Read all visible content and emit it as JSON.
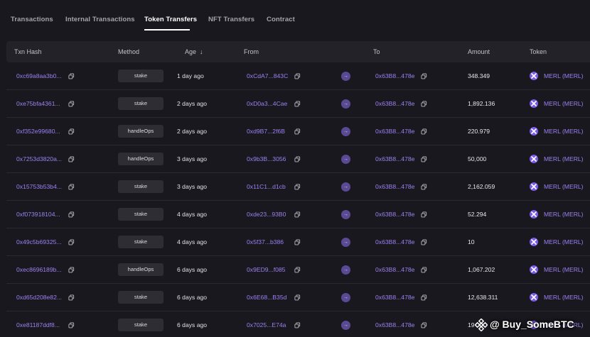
{
  "tabs": [
    {
      "label": "Transactions",
      "active": false
    },
    {
      "label": "Internal Transactions",
      "active": false
    },
    {
      "label": "Token Transfers",
      "active": true
    },
    {
      "label": "NFT Transfers",
      "active": false
    },
    {
      "label": "Contract",
      "active": false
    }
  ],
  "table": {
    "headers": {
      "txn_hash": "Txn Hash",
      "method": "Method",
      "age": "Age",
      "from": "From",
      "to": "To",
      "amount": "Amount",
      "token": "Token"
    },
    "sort_arrow": "↓",
    "rows": [
      {
        "hash": "0xc69a8aa3b0...",
        "method": "stake",
        "age": "1 day ago",
        "from": "0xCdA7...843C",
        "to": "0x63B8...478e",
        "amount": "348.349",
        "token": "MERL (MERL)"
      },
      {
        "hash": "0xe75bfa4361...",
        "method": "stake",
        "age": "2 days ago",
        "from": "0xD0a3...4Cae",
        "to": "0x63B8...478e",
        "amount": "1,892.136",
        "token": "MERL (MERL)"
      },
      {
        "hash": "0xf352e99680...",
        "method": "handleOps",
        "age": "2 days ago",
        "from": "0xd9B7...2f6B",
        "to": "0x63B8...478e",
        "amount": "220.979",
        "token": "MERL (MERL)"
      },
      {
        "hash": "0x7253d3820a...",
        "method": "handleOps",
        "age": "3 days ago",
        "from": "0x9b3B...3056",
        "to": "0x63B8...478e",
        "amount": "50,000",
        "token": "MERL (MERL)"
      },
      {
        "hash": "0x15753b53b4...",
        "method": "stake",
        "age": "3 days ago",
        "from": "0x11C1...d1cb",
        "to": "0x63B8...478e",
        "amount": "2,162.059",
        "token": "MERL (MERL)"
      },
      {
        "hash": "0xf073918104...",
        "method": "stake",
        "age": "4 days ago",
        "from": "0xde23...93B0",
        "to": "0x63B8...478e",
        "amount": "52.294",
        "token": "MERL (MERL)"
      },
      {
        "hash": "0x49c5b69325...",
        "method": "stake",
        "age": "4 days ago",
        "from": "0x5f37...b386",
        "to": "0x63B8...478e",
        "amount": "10",
        "token": "MERL (MERL)"
      },
      {
        "hash": "0xec8696189b...",
        "method": "handleOps",
        "age": "6 days ago",
        "from": "0x9ED9...f085",
        "to": "0x63B8...478e",
        "amount": "1,067.202",
        "token": "MERL (MERL)"
      },
      {
        "hash": "0xd65d208e82...",
        "method": "stake",
        "age": "6 days ago",
        "from": "0x6E68...B35d",
        "to": "0x63B8...478e",
        "amount": "12,638.311",
        "token": "MERL (MERL)"
      },
      {
        "hash": "0xe81187ddf8...",
        "method": "stake",
        "age": "6 days ago",
        "from": "0x7025...E74a",
        "to": "0x63B8...478e",
        "amount": "19",
        "token": "MERL (MERL)"
      }
    ]
  },
  "watermark": {
    "text": "@ Buy_SomeBTC"
  },
  "colors": {
    "accent": "#9b82f2",
    "background": "#19181e",
    "header": "#232228",
    "direction_badge": "#5a4a94"
  },
  "icons": {
    "copy": "copy-icon",
    "direction": "arrow-right-icon",
    "token": "merl-token-icon",
    "sort": "sort-down-icon"
  }
}
